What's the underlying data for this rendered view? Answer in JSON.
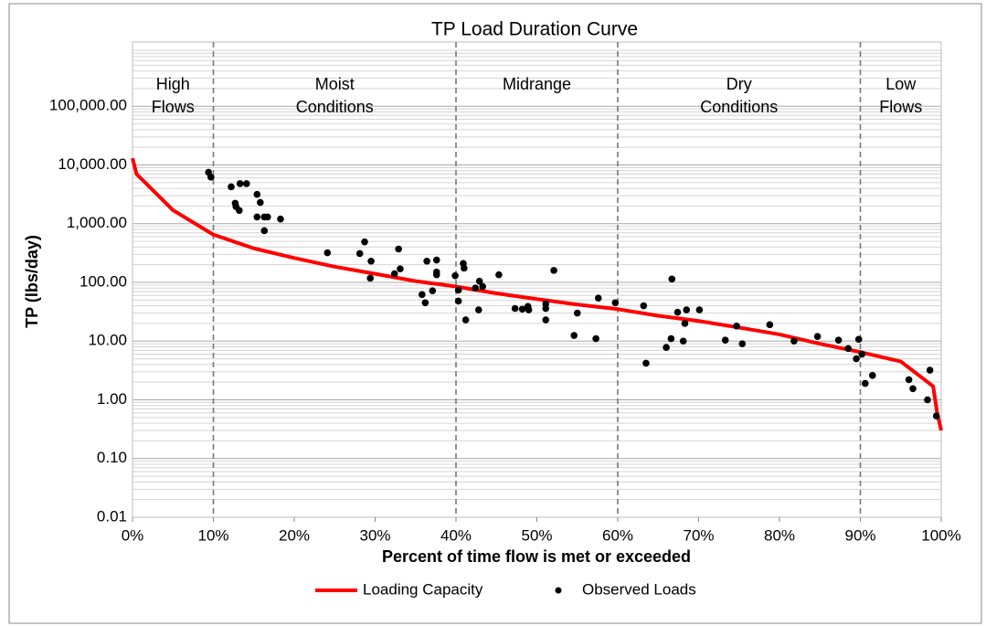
{
  "chart_data": {
    "type": "line",
    "title": "TP Load Duration Curve",
    "x_label": "Percent of time flow is met or exceeded",
    "y_label": "TP (lbs/day)",
    "log_y": true,
    "grid": true,
    "minor_grid": true,
    "legend": "bottom",
    "xlim": [
      0,
      100
    ],
    "xticks": [
      {
        "value": 0,
        "label": "0%"
      },
      {
        "value": 10,
        "label": "10%"
      },
      {
        "value": 20,
        "label": "20%"
      },
      {
        "value": 30,
        "label": "30%"
      },
      {
        "value": 40,
        "label": "40%"
      },
      {
        "value": 50,
        "label": "50%"
      },
      {
        "value": 60,
        "label": "60%"
      },
      {
        "value": 70,
        "label": "70%"
      },
      {
        "value": 80,
        "label": "80%"
      },
      {
        "value": 90,
        "label": "90%"
      },
      {
        "value": 100,
        "label": "100%"
      }
    ],
    "ylim": [
      0.01,
      1000000
    ],
    "yticks": [
      {
        "value": 0.01,
        "label": "0.01"
      },
      {
        "value": 0.1,
        "label": "0.10"
      },
      {
        "value": 1,
        "label": "1.00"
      },
      {
        "value": 10,
        "label": "10.00"
      },
      {
        "value": 100,
        "label": "100.00"
      },
      {
        "value": 1000,
        "label": "1,000.00"
      },
      {
        "value": 10000,
        "label": "10,000.00"
      },
      {
        "value": 100000,
        "label": "100,000.00"
      }
    ],
    "zone_bounds": [
      10,
      40,
      60,
      90
    ],
    "zones": [
      [
        "High",
        "Flows"
      ],
      [
        "Moist",
        "Conditions"
      ],
      [
        "Midrange"
      ],
      [
        "Dry",
        "Conditions"
      ],
      [
        "Low",
        "Flows"
      ]
    ],
    "series": [
      {
        "name": "Loading Capacity",
        "type": "line",
        "color": "#ff0000",
        "x": [
          0,
          0.5,
          1,
          5,
          10,
          15,
          20,
          25,
          30,
          35,
          40,
          45,
          50,
          55,
          60,
          65,
          70,
          75,
          80,
          85,
          90,
          95,
          99,
          99.5,
          100
        ],
        "values": [
          13000,
          7000,
          6000,
          1700,
          650,
          380,
          260,
          185,
          140,
          105,
          85,
          65,
          52,
          42,
          35,
          27,
          22,
          17,
          13,
          9,
          6.5,
          4.5,
          1.7,
          0.6,
          0.3
        ]
      },
      {
        "name": "Observed Loads",
        "type": "scatter",
        "color": "#000000",
        "x": [
          9.4,
          9.7,
          12.2,
          12.7,
          12.8,
          13.2,
          13.3,
          14.1,
          15.4,
          15.8,
          15.4,
          16.3,
          16.7,
          16.3,
          18.3,
          24.1,
          28.1,
          28.7,
          29.5,
          29.4,
          32.9,
          33.1,
          32.4,
          35.8,
          36.2,
          36.4,
          37.1,
          37.6,
          37.6,
          37.6,
          39.9,
          40.3,
          40.3,
          40.9,
          41.0,
          41.2,
          42.4,
          42.9,
          43.3,
          42.8,
          45.3,
          47.3,
          48.2,
          48.9,
          49.0,
          51.1,
          51.1,
          51.1,
          52.1,
          54.6,
          55.0,
          57.3,
          57.6,
          59.7,
          63.2,
          63.5,
          66.0,
          66.6,
          66.7,
          67.4,
          68.3,
          68.5,
          68.1,
          70.1,
          73.3,
          74.7,
          75.4,
          78.8,
          81.8,
          84.7,
          87.3,
          88.5,
          89.5,
          89.8,
          90.2,
          90.6,
          91.5,
          96.0,
          96.5,
          98.3,
          98.6,
          99.4
        ],
        "values": [
          7500,
          6200,
          4250,
          2230,
          1950,
          1680,
          4800,
          4800,
          3150,
          2300,
          1300,
          1300,
          1300,
          760,
          1200,
          320,
          310,
          490,
          230,
          118,
          370,
          170,
          140,
          62,
          45,
          230,
          72,
          240,
          150,
          135,
          130,
          74,
          48,
          210,
          175,
          23,
          80,
          105,
          85,
          34,
          135,
          36,
          35,
          39,
          34,
          43,
          36,
          23,
          160,
          12.5,
          30,
          11,
          54,
          45,
          40,
          4.2,
          7.8,
          11,
          114,
          31,
          20,
          34,
          10,
          34,
          10.4,
          18,
          9,
          19,
          10,
          12,
          10.4,
          7.5,
          5,
          10.7,
          6,
          1.9,
          2.6,
          2.2,
          1.55,
          1.0,
          3.2,
          0.53
        ]
      }
    ]
  }
}
